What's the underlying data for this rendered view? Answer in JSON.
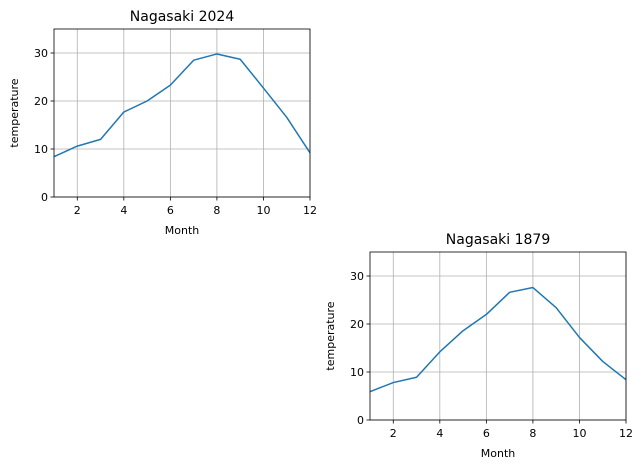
{
  "chart_data": [
    {
      "type": "line",
      "title": "Nagasaki 2024",
      "xlabel": "Month",
      "ylabel": "temperature",
      "xlim": [
        1,
        12
      ],
      "ylim": [
        0,
        35
      ],
      "xticks": [
        2,
        4,
        6,
        8,
        10,
        12
      ],
      "yticks": [
        0,
        10,
        20,
        30
      ],
      "grid": true,
      "color": "#1f77b4",
      "x": [
        1,
        2,
        3,
        4,
        5,
        6,
        7,
        8,
        9,
        10,
        11,
        12
      ],
      "y": [
        8.4,
        10.6,
        12.0,
        17.7,
        20.0,
        23.3,
        28.5,
        29.8,
        28.7,
        22.7,
        16.6,
        9.2
      ]
    },
    {
      "type": "line",
      "title": "Nagasaki 1879",
      "xlabel": "Month",
      "ylabel": "temperature",
      "xlim": [
        1,
        12
      ],
      "ylim": [
        0,
        35
      ],
      "xticks": [
        2,
        4,
        6,
        8,
        10,
        12
      ],
      "yticks": [
        0,
        10,
        20,
        30
      ],
      "grid": true,
      "color": "#1f77b4",
      "x": [
        1,
        2,
        3,
        4,
        5,
        6,
        7,
        8,
        9,
        10,
        11,
        12
      ],
      "y": [
        5.9,
        7.8,
        8.9,
        14.2,
        18.6,
        22.0,
        26.6,
        27.6,
        23.4,
        17.2,
        12.2,
        8.4
      ]
    }
  ]
}
